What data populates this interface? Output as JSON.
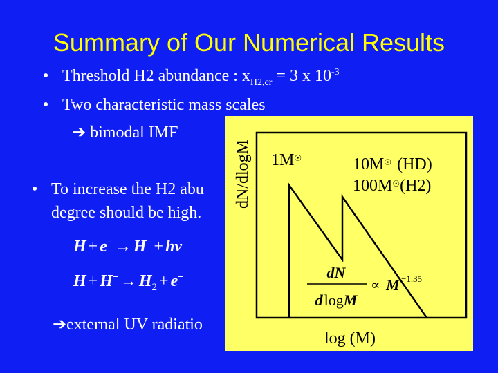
{
  "slide": {
    "title": "Summary of Our Numerical Results",
    "bullet1": {
      "prefix": "Threshold H2 abundance : x",
      "sub": "H2,cr",
      "middle": " = 3 x 10",
      "sup": "-3"
    },
    "bullet2": "Two characteristic mass scales",
    "bimodal": " bimodal IMF",
    "bullet3_line1": "To increase the H2 abu",
    "bullet3_line2": "degree should be high.",
    "external_uv": "external UV radiatio",
    "bullet_glyph": "•",
    "arrow_glyph": "➔"
  },
  "equations": {
    "eq1": {
      "H1": "H",
      "plus1": "+",
      "e1": "e",
      "minus1": "−",
      "arrow1": "→",
      "H2": "H",
      "minus2": "−",
      "plus2": "+",
      "hnu": "hν"
    },
    "eq2": {
      "H1": "H",
      "plus1": "+",
      "H2": "H",
      "minus1": "−",
      "arrow1": "→",
      "H3": "H",
      "sub2": "2",
      "plus2": "+",
      "e1": "e",
      "minus2": "−"
    }
  },
  "figure": {
    "ylabel": "dN/dlogM",
    "xlabel": "log (M)",
    "label_1m": "1M",
    "label_10m": "10M",
    "label_hd": "(HD)",
    "label_100m": "100M",
    "label_h2": "(H2)",
    "sun_symbol": "☉",
    "formula": {
      "num": "dN",
      "den_d": "d",
      "den_log": "log",
      "den_M": "M",
      "propto": "∝",
      "M": "M",
      "exponent": "−1.35"
    },
    "colors": {
      "panel": "#ffff66",
      "line": "#000000"
    }
  }
}
